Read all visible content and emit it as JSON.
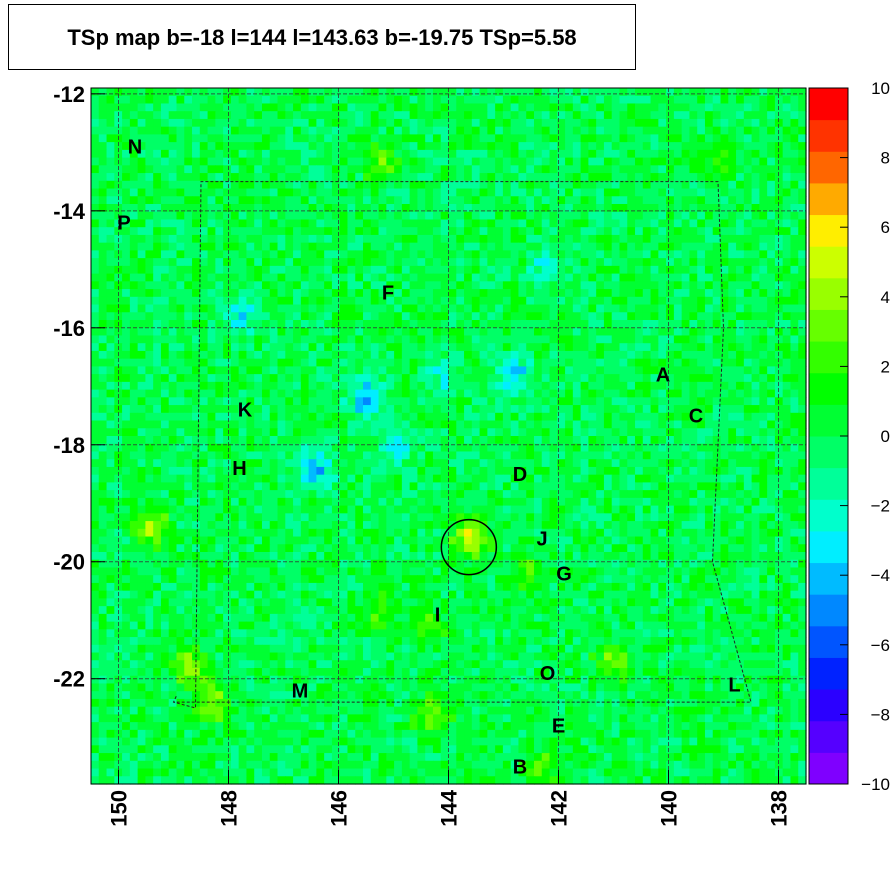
{
  "chart_data": {
    "type": "heatmap",
    "title": "TSp map b=-18 l=144 l=143.63 b=-19.75 TSp=5.58",
    "xlabel": "",
    "ylabel": "",
    "xlim": [
      150.5,
      137.5
    ],
    "ylim": [
      -23.8,
      -11.9
    ],
    "x_ticks": [
      "150",
      "148",
      "146",
      "144",
      "142",
      "140",
      "138"
    ],
    "x_tick_values": [
      150,
      148,
      146,
      144,
      142,
      140,
      138
    ],
    "y_ticks": [
      "-12",
      "-14",
      "-16",
      "-18",
      "-20",
      "-22"
    ],
    "y_tick_values": [
      -12,
      -14,
      -16,
      -18,
      -20,
      -22
    ],
    "colorbar": {
      "range": [
        -10,
        10
      ],
      "ticks": [
        "10",
        "8",
        "6",
        "4",
        "2",
        "0",
        "−2",
        "−4",
        "−6",
        "−8",
        "−10"
      ],
      "tick_values": [
        10,
        8,
        6,
        4,
        2,
        0,
        -2,
        -4,
        -6,
        -8,
        -10
      ],
      "colors": [
        "#7f00ff",
        "#5500ff",
        "#2b00ff",
        "#0022ff",
        "#0055ff",
        "#0088ff",
        "#00bbff",
        "#00eeff",
        "#00ffcc",
        "#00ff99",
        "#00ff66",
        "#00ff33",
        "#00ff00",
        "#33ff00",
        "#66ff00",
        "#99ff00",
        "#ccff00",
        "#ffee00",
        "#ffaa00",
        "#ff6600",
        "#ff3300",
        "#ff0000"
      ]
    },
    "background_ts_typical": 0,
    "hotspots": [
      {
        "l": 143.6,
        "b": -19.6,
        "ts": 5.6
      },
      {
        "l": 149.4,
        "b": -19.4,
        "ts": 4.0
      },
      {
        "l": 148.7,
        "b": -21.8,
        "ts": 4.5
      },
      {
        "l": 148.3,
        "b": -22.4,
        "ts": 3.8
      },
      {
        "l": 145.2,
        "b": -13.2,
        "ts": 3.0
      },
      {
        "l": 139.1,
        "b": -13.1,
        "ts": 2.8
      },
      {
        "l": 141.0,
        "b": -21.7,
        "ts": 3.5
      },
      {
        "l": 144.3,
        "b": -22.6,
        "ts": 3.2
      },
      {
        "l": 142.3,
        "b": -23.5,
        "ts": 2.8
      },
      {
        "l": 142.6,
        "b": -20.2,
        "ts": 2.6
      },
      {
        "l": 145.3,
        "b": -20.8,
        "ts": 2.4
      },
      {
        "l": 144.4,
        "b": -21.1,
        "ts": 2.5
      }
    ],
    "coldspots": [
      {
        "l": 145.5,
        "b": -17.2,
        "ts": -4.5
      },
      {
        "l": 146.4,
        "b": -18.4,
        "ts": -4.2
      },
      {
        "l": 142.8,
        "b": -16.8,
        "ts": -3.5
      },
      {
        "l": 147.8,
        "b": -15.8,
        "ts": -3.2
      },
      {
        "l": 145.0,
        "b": -18.0,
        "ts": -3.0
      },
      {
        "l": 142.2,
        "b": -15.0,
        "ts": -2.5
      },
      {
        "l": 144.1,
        "b": -16.8,
        "ts": -2.5
      }
    ],
    "circle": {
      "l": 143.63,
      "b": -19.75,
      "radius_deg": 0.5
    },
    "sources": [
      {
        "label": "N",
        "l": 149.7,
        "b": -12.9
      },
      {
        "label": "P",
        "l": 149.9,
        "b": -14.2
      },
      {
        "label": "F",
        "l": 145.1,
        "b": -15.4
      },
      {
        "label": "A",
        "l": 140.1,
        "b": -16.8
      },
      {
        "label": "C",
        "l": 139.5,
        "b": -17.5
      },
      {
        "label": "K",
        "l": 147.7,
        "b": -17.4
      },
      {
        "label": "H",
        "l": 147.8,
        "b": -18.4
      },
      {
        "label": "D",
        "l": 142.7,
        "b": -18.5
      },
      {
        "label": "J",
        "l": 142.3,
        "b": -19.6
      },
      {
        "label": "G",
        "l": 141.9,
        "b": -20.2
      },
      {
        "label": "I",
        "l": 144.2,
        "b": -20.9
      },
      {
        "label": "O",
        "l": 142.2,
        "b": -21.9
      },
      {
        "label": "L",
        "l": 138.8,
        "b": -22.1
      },
      {
        "label": "M",
        "l": 146.7,
        "b": -22.2
      },
      {
        "label": "E",
        "l": 142.0,
        "b": -22.8
      },
      {
        "label": "B",
        "l": 142.7,
        "b": -23.5
      }
    ],
    "grid": true
  }
}
